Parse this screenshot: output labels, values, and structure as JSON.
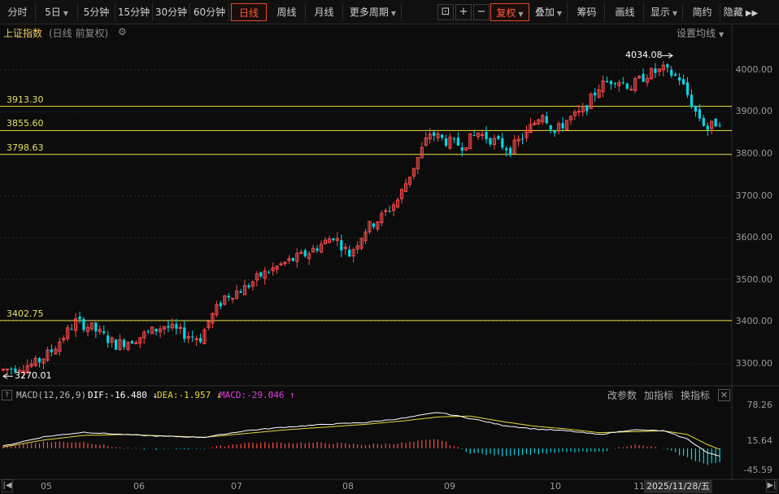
{
  "toolbar": {
    "periods": [
      "分时",
      "5日",
      "5分钟",
      "15分钟",
      "30分钟",
      "60分钟",
      "日线",
      "周线",
      "月线",
      "更多周期"
    ],
    "active_period": "日线",
    "tools": [
      "复权",
      "叠加",
      "筹码",
      "画线",
      "显示",
      "简约",
      "隐藏"
    ]
  },
  "title": {
    "index_name": "上证指数",
    "mode": "(日线 前复权)",
    "ma_settings": "设置均线"
  },
  "price_axis": [
    "4000.00",
    "3900.00",
    "3800.00",
    "3700.00",
    "3600.00",
    "3500.00",
    "3400.00",
    "3300.00"
  ],
  "horizontal_lines": [
    "3913.30",
    "3855.60",
    "3798.63",
    "3402.75"
  ],
  "annotations": {
    "high_label": "4034.08",
    "low_label": "3270.01"
  },
  "macd": {
    "name": "MACD(12,26,9)",
    "dif_label": "DIF:",
    "dif_value": "-16.480",
    "dea_label": "DEA:",
    "dea_value": "-1.957",
    "macd_label": "MACD:",
    "macd_value": "-29.046",
    "tools": [
      "改参数",
      "加指标",
      "换指标"
    ],
    "axis": [
      "78.26",
      "15.64",
      "-45.59"
    ]
  },
  "x_axis": [
    "05",
    "06",
    "07",
    "08",
    "09",
    "10",
    "11"
  ],
  "cursor_date": "2025/11/28/五",
  "colors": {
    "up": "#ff4a4a",
    "down": "#00d8e8",
    "hline": "#e8e040",
    "dif": "#ffffff",
    "dea": "#e8d83a"
  },
  "chart_data": {
    "type": "candlestick",
    "ylim": [
      3255,
      4060
    ],
    "hlines": [
      3913.3,
      3855.6,
      3798.63,
      3402.75
    ],
    "high": 4034.08,
    "low": 3270.01,
    "waypoints": [
      [
        0,
        3285
      ],
      [
        8,
        3300
      ],
      [
        12,
        3330
      ],
      [
        18,
        3400
      ],
      [
        22,
        3385
      ],
      [
        28,
        3345
      ],
      [
        33,
        3360
      ],
      [
        40,
        3390
      ],
      [
        45,
        3370
      ],
      [
        49,
        3360
      ],
      [
        51,
        3400
      ],
      [
        55,
        3460
      ],
      [
        60,
        3480
      ],
      [
        64,
        3510
      ],
      [
        70,
        3540
      ],
      [
        75,
        3560
      ],
      [
        80,
        3590
      ],
      [
        82,
        3605
      ],
      [
        86,
        3560
      ],
      [
        90,
        3620
      ],
      [
        94,
        3650
      ],
      [
        98,
        3690
      ],
      [
        102,
        3770
      ],
      [
        106,
        3850
      ],
      [
        110,
        3830
      ],
      [
        114,
        3820
      ],
      [
        118,
        3850
      ],
      [
        122,
        3830
      ],
      [
        126,
        3810
      ],
      [
        130,
        3850
      ],
      [
        134,
        3900
      ],
      [
        137,
        3850
      ],
      [
        140,
        3880
      ],
      [
        144,
        3900
      ],
      [
        148,
        3960
      ],
      [
        152,
        3980
      ],
      [
        156,
        3960
      ],
      [
        160,
        3990
      ],
      [
        164,
        4000
      ],
      [
        168,
        3980
      ],
      [
        172,
        3900
      ],
      [
        175,
        3860
      ],
      [
        178,
        3880
      ]
    ],
    "macd_waypoints": [
      [
        0,
        5,
        3
      ],
      [
        10,
        25,
        18
      ],
      [
        20,
        35,
        28
      ],
      [
        30,
        30,
        30
      ],
      [
        40,
        26,
        27
      ],
      [
        50,
        24,
        24
      ],
      [
        60,
        38,
        32
      ],
      [
        70,
        46,
        40
      ],
      [
        80,
        52,
        46
      ],
      [
        90,
        56,
        52
      ],
      [
        100,
        66,
        60
      ],
      [
        108,
        78,
        68
      ],
      [
        116,
        65,
        70
      ],
      [
        124,
        50,
        58
      ],
      [
        132,
        42,
        48
      ],
      [
        140,
        38,
        42
      ],
      [
        148,
        30,
        34
      ],
      [
        156,
        40,
        36
      ],
      [
        164,
        38,
        38
      ],
      [
        170,
        20,
        30
      ],
      [
        175,
        -10,
        8
      ],
      [
        178,
        -16.48,
        -1.957
      ]
    ],
    "macd_ylim": [
      -60,
      95
    ]
  }
}
